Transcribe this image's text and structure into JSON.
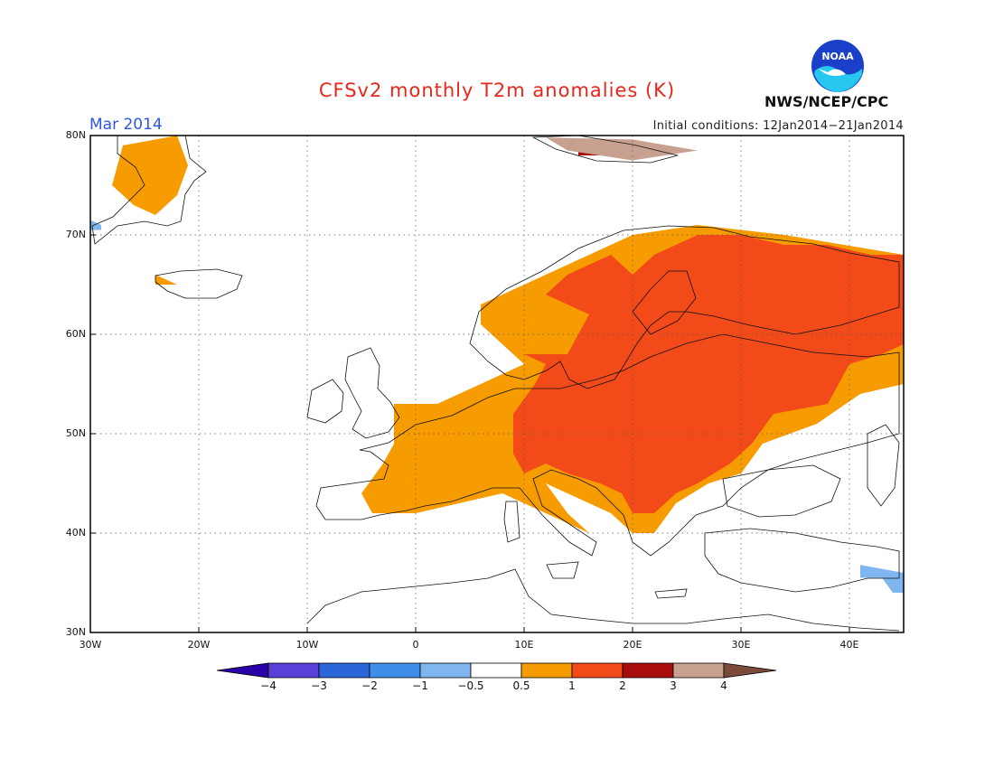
{
  "title": "CFSv2 monthly T2m anomalies (K)",
  "month": "Mar 2014",
  "agency": "NWS/NCEP/CPC",
  "logo_text": "NOAA",
  "initial_conditions": "Initial conditions: 12Jan2014−21Jan2014",
  "map": {
    "lon_range": [
      -30,
      45
    ],
    "lat_range": [
      30,
      80
    ],
    "grid": true,
    "lat_ticks": [
      "30N",
      "40N",
      "50N",
      "60N",
      "70N",
      "80N"
    ],
    "lon_ticks": [
      "30W",
      "20W",
      "10W",
      "0",
      "10E",
      "20E",
      "30E",
      "40E"
    ]
  },
  "colorbar": {
    "labels": [
      "−4",
      "−3",
      "−2",
      "−1",
      "−0.5",
      "0.5",
      "1",
      "2",
      "3",
      "4"
    ],
    "colors": [
      "#2a00a8",
      "#5a3fd8",
      "#2a66d8",
      "#3f8fe8",
      "#7fb6ef",
      "#ffffff",
      "#f79c00",
      "#f34a1a",
      "#a80c0c",
      "#c8a090",
      "#7a4a3a"
    ]
  },
  "anomaly_colors": {
    "0.5-1": "#f79c00",
    "1-2": "#f34a1a",
    "2-3": "#a80c0c",
    "3-4": "#c8a090",
    "-1--0.5": "#7fb6ef"
  }
}
